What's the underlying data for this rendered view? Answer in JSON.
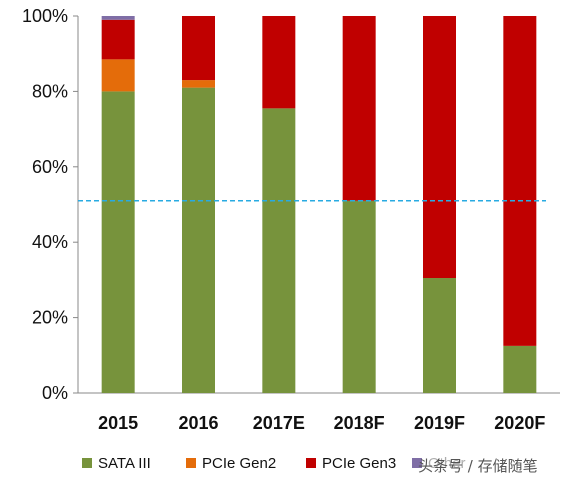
{
  "chart_data": {
    "type": "bar",
    "stacked": true,
    "categories": [
      "2015",
      "2016",
      "2017E",
      "2018F",
      "2019F",
      "2020F"
    ],
    "series": [
      {
        "name": "SATA III",
        "color": "#77933c",
        "values": [
          80,
          81,
          75.5,
          51,
          30.5,
          12.5
        ]
      },
      {
        "name": "PCIe Gen2",
        "color": "#e46c0a",
        "values": [
          8.5,
          2,
          0,
          0,
          0,
          0
        ]
      },
      {
        "name": "PCIe Gen3",
        "color": "#c00000",
        "values": [
          10.5,
          17,
          24.5,
          49,
          69.5,
          87.5
        ]
      },
      {
        "name": "Other",
        "color": "#7f6ea6",
        "values": [
          1,
          0,
          0,
          0,
          0,
          0
        ]
      }
    ],
    "yticks": [
      "0%",
      "20%",
      "40%",
      "60%",
      "80%",
      "100%"
    ],
    "ylim": [
      0,
      100
    ],
    "reference_line": {
      "value": 51,
      "color": "#29abe2",
      "style": "dashed"
    },
    "legend_position": "bottom",
    "grid": false
  },
  "legend": {
    "items": [
      "SATA III",
      "PCIe Gen2",
      "PCIe Gen3",
      "Other"
    ]
  },
  "watermark": "头条号 / 存储随笔"
}
